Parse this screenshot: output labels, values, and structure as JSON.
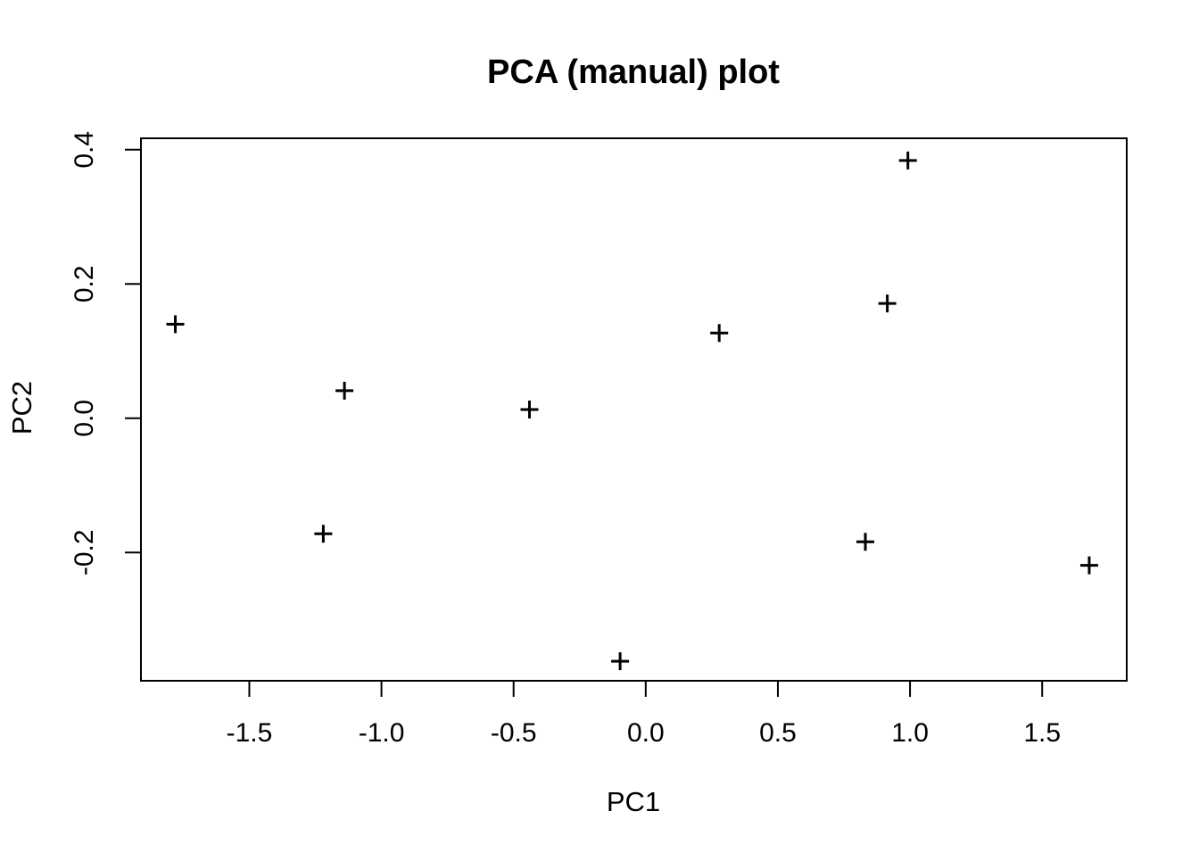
{
  "title": "PCA (manual) plot",
  "chart_data": {
    "type": "scatter",
    "title": "PCA (manual) plot",
    "xlabel": "PC1",
    "ylabel": "PC2",
    "marker": "plus",
    "marker_color": "#000000",
    "background_color": "#ffffff",
    "grid": false,
    "legend": null,
    "xlim": [
      -1.91,
      1.82
    ],
    "ylim": [
      -0.391,
      0.417
    ],
    "x_ticks": [
      -1.5,
      -1.0,
      -0.5,
      0.0,
      0.5,
      1.0,
      1.5
    ],
    "x_tick_labels": [
      "-1.5",
      "-1.0",
      "-0.5",
      "0.0",
      "0.5",
      "1.0",
      "1.5"
    ],
    "y_ticks": [
      -0.2,
      0.0,
      0.2,
      0.4
    ],
    "y_tick_labels": [
      "-0.2",
      "0.0",
      "0.2",
      "0.4"
    ],
    "points": [
      {
        "x": -1.78,
        "y": 0.14
      },
      {
        "x": -1.22,
        "y": -0.172
      },
      {
        "x": -1.14,
        "y": 0.041
      },
      {
        "x": -0.44,
        "y": 0.013
      },
      {
        "x": -0.097,
        "y": -0.362
      },
      {
        "x": 0.278,
        "y": 0.127
      },
      {
        "x": 0.831,
        "y": -0.184
      },
      {
        "x": 0.914,
        "y": 0.171
      },
      {
        "x": 0.992,
        "y": 0.384
      },
      {
        "x": 1.678,
        "y": -0.219
      }
    ]
  }
}
